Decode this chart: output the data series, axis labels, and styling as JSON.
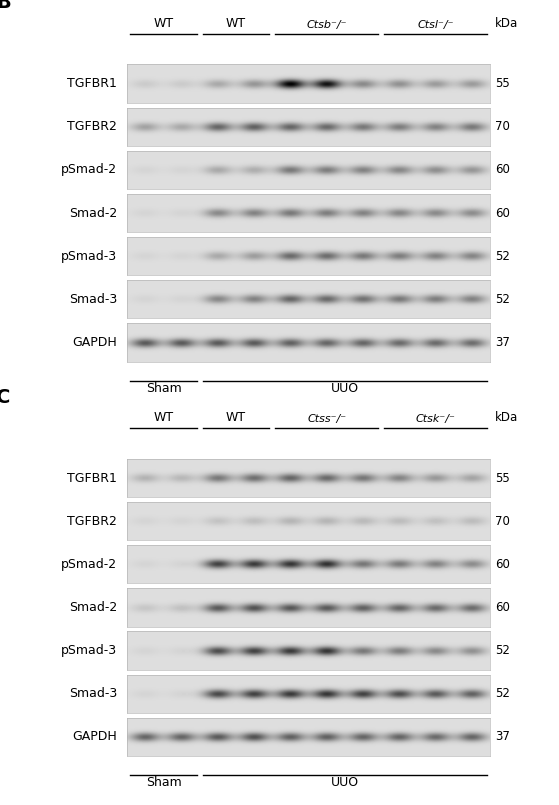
{
  "panels": [
    {
      "label": "B",
      "group_labels": [
        "WT",
        "WT",
        "Ctsb⁻/⁻",
        "Ctsl⁻/⁻"
      ],
      "group_italic": [
        false,
        false,
        true,
        true
      ],
      "group_cols": [
        2,
        2,
        3,
        3
      ],
      "n_sham": 2,
      "n_uuo": 8,
      "rows": [
        {
          "name": "TGFBR1",
          "kda": "55",
          "band_intensities": [
            0.08,
            0.08,
            0.22,
            0.3,
            0.92,
            0.85,
            0.35,
            0.32,
            0.28,
            0.28
          ]
        },
        {
          "name": "TGFBR2",
          "kda": "70",
          "band_intensities": [
            0.25,
            0.22,
            0.5,
            0.52,
            0.5,
            0.48,
            0.42,
            0.4,
            0.38,
            0.42
          ]
        },
        {
          "name": "pSmad-2",
          "kda": "60",
          "band_intensities": [
            0.04,
            0.04,
            0.22,
            0.2,
            0.42,
            0.4,
            0.38,
            0.36,
            0.33,
            0.3
          ]
        },
        {
          "name": "Smad-2",
          "kda": "60",
          "band_intensities": [
            0.04,
            0.04,
            0.35,
            0.38,
            0.42,
            0.4,
            0.38,
            0.36,
            0.35,
            0.34
          ]
        },
        {
          "name": "pSmad-3",
          "kda": "52",
          "band_intensities": [
            0.04,
            0.04,
            0.22,
            0.27,
            0.48,
            0.47,
            0.42,
            0.4,
            0.38,
            0.37
          ]
        },
        {
          "name": "Smad-3",
          "kda": "52",
          "band_intensities": [
            0.04,
            0.04,
            0.36,
            0.38,
            0.5,
            0.48,
            0.45,
            0.42,
            0.4,
            0.38
          ]
        },
        {
          "name": "GAPDH",
          "kda": "37",
          "band_intensities": [
            0.55,
            0.55,
            0.55,
            0.55,
            0.52,
            0.5,
            0.5,
            0.48,
            0.48,
            0.47
          ]
        }
      ],
      "sham_label": "Sham",
      "uuo_label": "UUO"
    },
    {
      "label": "C",
      "group_labels": [
        "WT",
        "WT",
        "Ctss⁻/⁻",
        "Ctsk⁻/⁻"
      ],
      "group_italic": [
        false,
        false,
        true,
        true
      ],
      "group_cols": [
        2,
        2,
        3,
        3
      ],
      "n_sham": 2,
      "n_uuo": 8,
      "rows": [
        {
          "name": "TGFBR1",
          "kda": "55",
          "band_intensities": [
            0.18,
            0.16,
            0.42,
            0.46,
            0.5,
            0.48,
            0.43,
            0.37,
            0.29,
            0.24
          ]
        },
        {
          "name": "TGFBR2",
          "kda": "70",
          "band_intensities": [
            0.04,
            0.04,
            0.11,
            0.13,
            0.17,
            0.17,
            0.15,
            0.14,
            0.12,
            0.14
          ]
        },
        {
          "name": "pSmad-2",
          "kda": "60",
          "band_intensities": [
            0.04,
            0.04,
            0.65,
            0.68,
            0.7,
            0.72,
            0.43,
            0.41,
            0.38,
            0.34
          ]
        },
        {
          "name": "Smad-2",
          "kda": "60",
          "band_intensities": [
            0.1,
            0.12,
            0.55,
            0.58,
            0.56,
            0.55,
            0.52,
            0.5,
            0.48,
            0.47
          ]
        },
        {
          "name": "pSmad-3",
          "kda": "52",
          "band_intensities": [
            0.04,
            0.04,
            0.6,
            0.65,
            0.68,
            0.7,
            0.42,
            0.4,
            0.35,
            0.32
          ]
        },
        {
          "name": "Smad-3",
          "kda": "52",
          "band_intensities": [
            0.04,
            0.04,
            0.62,
            0.65,
            0.68,
            0.7,
            0.65,
            0.6,
            0.55,
            0.52
          ]
        },
        {
          "name": "GAPDH",
          "kda": "37",
          "band_intensities": [
            0.5,
            0.5,
            0.55,
            0.58,
            0.52,
            0.52,
            0.5,
            0.5,
            0.48,
            0.5
          ]
        }
      ],
      "sham_label": "Sham",
      "uuo_label": "UUO"
    }
  ]
}
